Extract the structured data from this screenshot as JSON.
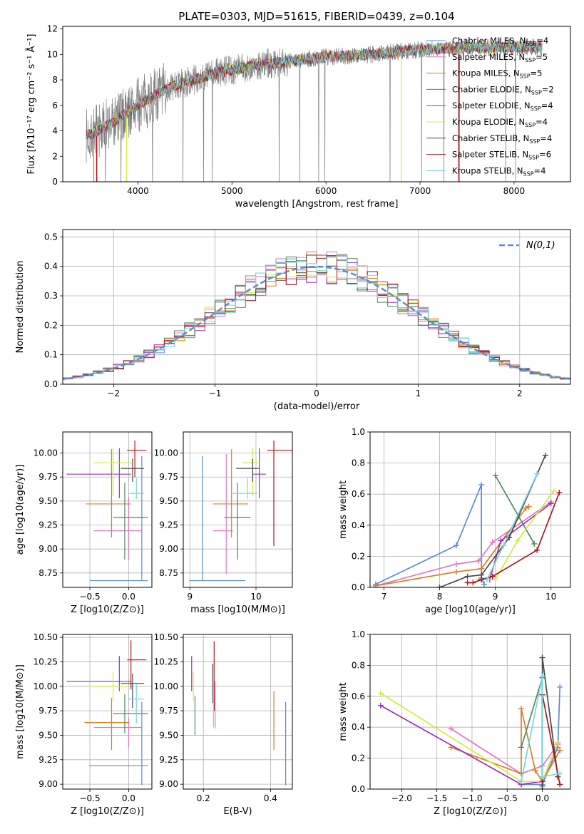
{
  "figure_title": "PLATE=0303, MJD=51615, FIBERID=0439, z=0.104",
  "chart_data": [
    {
      "id": "spectrum",
      "type": "line",
      "title": "PLATE=0303, MJD=51615, FIBERID=0439, z=0.104",
      "xlabel": "wavelength [Angstrom, rest frame]",
      "ylabel": "Flux [fλ10⁻¹⁷ erg cm⁻² s⁻¹ Å⁻¹]",
      "xlim": [
        3200,
        8600
      ],
      "ylim": [
        0,
        12.2
      ],
      "xticks": [
        4000,
        5000,
        6000,
        7000,
        8000
      ],
      "yticks": [
        0,
        2,
        4,
        6,
        8,
        10,
        12
      ],
      "legend": "upper right",
      "grid": false,
      "observed": {
        "color": "#808080",
        "x_range": [
          3450,
          8300
        ],
        "continuum": [
          [
            3450,
            3.6
          ],
          [
            3700,
            4.5
          ],
          [
            4000,
            6.0
          ],
          [
            4300,
            7.3
          ],
          [
            4800,
            8.5
          ],
          [
            5300,
            9.2
          ],
          [
            6000,
            9.8
          ],
          [
            6500,
            10.0
          ],
          [
            7000,
            10.4
          ],
          [
            7500,
            10.5
          ],
          [
            8000,
            10.6
          ],
          [
            8300,
            10.6
          ]
        ]
      },
      "series": [
        {
          "name": "Chabrier MILES, N_SSP=4",
          "color": "#5b8bd5"
        },
        {
          "name": "Salpeter MILES, N_SSP=5",
          "color": "#e377c2"
        },
        {
          "name": "Kroupa MILES, N_SSP=5",
          "color": "#e07b1f"
        },
        {
          "name": "Chabrier ELODIE, N_SSP=2",
          "color": "#4f8a5b"
        },
        {
          "name": "Salpeter ELODIE, N_SSP=4",
          "color": "#9b30b8"
        },
        {
          "name": "Kroupa ELODIE, N_SSP=4",
          "color": "#d4ec3c"
        },
        {
          "name": "Chabrier STELIB, N_SSP=4",
          "color": "#4a4a4a"
        },
        {
          "name": "Salpeter STELIB, N_SSP=6",
          "color": "#b0141b"
        },
        {
          "name": "Kroupa STELIB, N_SSP=4",
          "color": "#74d8e2"
        }
      ]
    },
    {
      "id": "residuals",
      "type": "histogram",
      "xlabel": "(data-model)/error",
      "ylabel": "Normed distribution",
      "xlim": [
        -2.5,
        2.5
      ],
      "ylim": [
        0,
        0.525
      ],
      "xticks": [
        -2,
        -1,
        0,
        1,
        2
      ],
      "yticks": [
        0.0,
        0.1,
        0.2,
        0.3,
        0.4,
        0.5
      ],
      "grid": true,
      "legend": "upper right",
      "reference": {
        "name": "N(0,1)",
        "color": "#5b8bd5",
        "style": "dashed"
      },
      "bin_width": 0.1
    },
    {
      "id": "age_vs_Z",
      "type": "errorbar",
      "xlabel": "Z [log10(Z/Z⊙)]",
      "ylabel": "age [log10(age/yr)]",
      "xlim": [
        -0.85,
        0.3
      ],
      "ylim": [
        8.6,
        10.22
      ],
      "xticks": [
        -0.5,
        0.0
      ],
      "yticks": [
        8.75,
        9.0,
        9.25,
        9.5,
        9.75,
        10.0
      ],
      "grid": true,
      "points": [
        {
          "x": 0.17,
          "xerr": [
            0.67,
            0.08
          ],
          "y": 8.67,
          "yerr": [
            0,
            1.3
          ],
          "color": "#5b8bd5"
        },
        {
          "x": 0.0,
          "xerr": [
            0.45,
            0.17
          ],
          "y": 9.19,
          "yerr": [
            0.3,
            0.35
          ],
          "color": "#e377c2"
        },
        {
          "x": -0.22,
          "xerr": [
            0.33,
            0.25
          ],
          "y": 9.47,
          "yerr": [
            0.35,
            0.57
          ],
          "color": "#e07b1f"
        },
        {
          "x": -0.05,
          "xerr": [
            0.15,
            0.3
          ],
          "y": 9.33,
          "yerr": [
            0.44,
            0.36
          ],
          "color": "#4f8a5b"
        },
        {
          "x": -0.12,
          "xerr": [
            0.68,
            0.15
          ],
          "y": 9.78,
          "yerr": [
            0.25,
            0.27
          ],
          "color": "#9b30b8"
        },
        {
          "x": -0.2,
          "xerr": [
            0.25,
            0.25
          ],
          "y": 9.9,
          "yerr": [
            0.35,
            0.15
          ],
          "color": "#d4ec3c"
        },
        {
          "x": 0.05,
          "xerr": [
            0.15,
            0.15
          ],
          "y": 9.84,
          "yerr": [
            0.14,
            0.1
          ],
          "color": "#4a4a4a"
        },
        {
          "x": 0.08,
          "xerr": [
            0.1,
            0.15
          ],
          "y": 10.03,
          "yerr": [
            0.28,
            0.1
          ],
          "color": "#b0141b"
        },
        {
          "x": 0.1,
          "xerr": [
            0.1,
            0.1
          ],
          "y": 9.58,
          "yerr": [
            0.06,
            0.16
          ],
          "color": "#74d8e2"
        }
      ]
    },
    {
      "id": "age_vs_mass",
      "type": "errorbar",
      "xlabel": "mass [log10(M/M⊙)]",
      "ylabel": "",
      "xlim": [
        8.9,
        10.55
      ],
      "ylim": [
        8.6,
        10.22
      ],
      "xticks": [
        9,
        10
      ],
      "yticks": [
        8.75,
        9.0,
        9.25,
        9.5,
        9.75,
        10.0
      ],
      "grid": true,
      "points": [
        {
          "x": 9.19,
          "xerr": [
            0.2,
            0.65
          ],
          "y": 8.67,
          "yerr": [
            0,
            1.3
          ],
          "color": "#5b8bd5"
        },
        {
          "x": 9.55,
          "xerr": [
            0.2,
            0.1
          ],
          "y": 9.19,
          "yerr": [
            0.45,
            0.8
          ],
          "color": "#e377c2"
        },
        {
          "x": 9.63,
          "xerr": [
            0.28,
            0.25
          ],
          "y": 9.47,
          "yerr": [
            0.35,
            0.57
          ],
          "color": "#e07b1f"
        },
        {
          "x": 9.72,
          "xerr": [
            0.2,
            0.2
          ],
          "y": 9.33,
          "yerr": [
            0.44,
            0.36
          ],
          "color": "#4f8a5b"
        },
        {
          "x": 10.05,
          "xerr": [
            0.1,
            0.1
          ],
          "y": 9.78,
          "yerr": [
            0.25,
            0.27
          ],
          "color": "#9b30b8"
        },
        {
          "x": 9.95,
          "xerr": [
            0.15,
            0.1
          ],
          "y": 9.9,
          "yerr": [
            0.35,
            0.15
          ],
          "color": "#d4ec3c"
        },
        {
          "x": 9.95,
          "xerr": [
            0.25,
            0.1
          ],
          "y": 9.84,
          "yerr": [
            0.14,
            0.1
          ],
          "color": "#4a4a4a"
        },
        {
          "x": 10.27,
          "xerr": [
            0.1,
            0.3
          ],
          "y": 10.03,
          "yerr": [
            1.0,
            0.1
          ],
          "color": "#b0141b"
        },
        {
          "x": 9.87,
          "xerr": [
            0.25,
            0.15
          ],
          "y": 9.58,
          "yerr": [
            0.06,
            0.16
          ],
          "color": "#74d8e2"
        }
      ]
    },
    {
      "id": "mass_weight_vs_age",
      "type": "line",
      "xlabel": "age [log10(age/yr)]",
      "ylabel": "mass weight",
      "xlim": [
        6.75,
        10.35
      ],
      "ylim": [
        0,
        1.0
      ],
      "xticks": [
        7,
        8,
        9,
        10
      ],
      "yticks": [
        0.0,
        0.2,
        0.4,
        0.6,
        0.8,
        1.0
      ],
      "grid": true,
      "series": [
        {
          "color": "#5b8bd5",
          "x": [
            6.85,
            8.3,
            8.75,
            8.75,
            8.8
          ],
          "y": [
            0.02,
            0.27,
            0.66,
            0.06,
            0.02
          ]
        },
        {
          "color": "#e377c2",
          "x": [
            6.85,
            8.3,
            8.7,
            8.95,
            10.0
          ],
          "y": [
            0.01,
            0.15,
            0.17,
            0.29,
            0.55
          ]
        },
        {
          "color": "#e07b1f",
          "x": [
            6.85,
            8.3,
            8.75,
            9.55,
            9.6
          ],
          "y": [
            0.01,
            0.1,
            0.12,
            0.51,
            0.52
          ]
        },
        {
          "color": "#4f8a5b",
          "x": [
            9.0,
            9.7
          ],
          "y": [
            0.72,
            0.28
          ]
        },
        {
          "color": "#9b30b8",
          "x": [
            8.75,
            8.9,
            9.1,
            10.0
          ],
          "y": [
            0.05,
            0.05,
            0.3,
            0.54
          ]
        },
        {
          "color": "#d4ec3c",
          "x": [
            8.7,
            9.0,
            9.4,
            10.05
          ],
          "y": [
            0.05,
            0.05,
            0.3,
            0.62
          ]
        },
        {
          "color": "#4a4a4a",
          "x": [
            8.0,
            8.5,
            8.75,
            9.25,
            9.9
          ],
          "y": [
            0.0,
            0.07,
            0.08,
            0.32,
            0.85
          ]
        },
        {
          "color": "#b0141b",
          "x": [
            8.5,
            8.6,
            8.75,
            8.95,
            9.75,
            10.15
          ],
          "y": [
            0.03,
            0.03,
            0.05,
            0.07,
            0.24,
            0.61
          ]
        },
        {
          "color": "#74d8e2",
          "x": [
            8.85,
            9.15,
            9.75
          ],
          "y": [
            0.05,
            0.27,
            0.73
          ]
        }
      ]
    },
    {
      "id": "mass_vs_Z",
      "type": "errorbar",
      "xlabel": "Z [log10(Z/Z⊙)]",
      "ylabel": "mass [log10(M/M⊙)]",
      "xlim": [
        -0.85,
        0.3
      ],
      "ylim": [
        8.95,
        10.53
      ],
      "xticks": [
        -0.5,
        0.0
      ],
      "yticks": [
        9.0,
        9.25,
        9.5,
        9.75,
        10.0,
        10.25,
        10.5
      ],
      "grid": true,
      "points": [
        {
          "x": 0.17,
          "xerr": [
            0.68,
            0.08
          ],
          "y": 9.19,
          "yerr": [
            0.2,
            0.65
          ],
          "color": "#5b8bd5"
        },
        {
          "x": 0.0,
          "xerr": [
            0.45,
            0.17
          ],
          "y": 9.58,
          "yerr": [
            0.2,
            0.1
          ],
          "color": "#e377c2"
        },
        {
          "x": -0.22,
          "xerr": [
            0.35,
            0.23
          ],
          "y": 9.63,
          "yerr": [
            0.28,
            0.25
          ],
          "color": "#e07b1f"
        },
        {
          "x": -0.05,
          "xerr": [
            0.15,
            0.3
          ],
          "y": 9.72,
          "yerr": [
            0.2,
            0.2
          ],
          "color": "#4f8a5b"
        },
        {
          "x": -0.12,
          "xerr": [
            0.68,
            0.15
          ],
          "y": 10.05,
          "yerr": [
            0.1,
            0.26
          ],
          "color": "#9b30b8"
        },
        {
          "x": -0.2,
          "xerr": [
            0.3,
            0.2
          ],
          "y": 10.0,
          "yerr": [
            0.15,
            0.15
          ],
          "color": "#d4ec3c"
        },
        {
          "x": 0.05,
          "xerr": [
            0.15,
            0.15
          ],
          "y": 10.03,
          "yerr": [
            0.25,
            0.1
          ],
          "color": "#4a4a4a"
        },
        {
          "x": 0.03,
          "xerr": [
            0.05,
            0.2
          ],
          "y": 10.27,
          "yerr": [
            0.3,
            0.2
          ],
          "color": "#b0141b"
        },
        {
          "x": 0.1,
          "xerr": [
            0.1,
            0.1
          ],
          "y": 9.87,
          "yerr": [
            0.25,
            0.15
          ],
          "color": "#74d8e2"
        }
      ]
    },
    {
      "id": "mass_vs_EBV",
      "type": "errorbar",
      "xlabel": "E(B-V)",
      "ylabel": "",
      "xlim": [
        0.14,
        0.465
      ],
      "ylim": [
        8.95,
        10.53
      ],
      "xticks": [
        0.2,
        0.4
      ],
      "yticks": [
        9.0,
        9.25,
        9.5,
        9.75,
        10.0,
        10.25,
        10.5
      ],
      "grid": true,
      "points": [
        {
          "x": 0.445,
          "y": 9.19,
          "yerr": [
            0.2,
            0.65
          ],
          "color": "#5b8bd5"
        },
        {
          "x": 0.41,
          "y": 9.6,
          "yerr": [
            0.25,
            0.35
          ],
          "color": "#e07b1f"
        },
        {
          "x": 0.235,
          "y": 9.85,
          "yerr": [
            0.28,
            0.2
          ],
          "color": "#e377c2"
        },
        {
          "x": 0.175,
          "y": 9.7,
          "yerr": [
            0.2,
            0.2
          ],
          "color": "#4f8a5b"
        },
        {
          "x": 0.165,
          "y": 10.15,
          "yerr": [
            0.2,
            0.16
          ],
          "color": "#9b30b8"
        },
        {
          "x": 0.17,
          "y": 10.0,
          "yerr": [
            0.15,
            0.15
          ],
          "color": "#d4ec3c"
        },
        {
          "x": 0.228,
          "y": 10.03,
          "yerr": [
            0.2,
            0.2
          ],
          "color": "#4a4a4a"
        },
        {
          "x": 0.232,
          "y": 10.2,
          "yerr": [
            0.45,
            0.26
          ],
          "color": "#b0141b"
        },
        {
          "x": 0.23,
          "y": 9.83,
          "yerr": [
            0.25,
            0.1
          ],
          "color": "#74d8e2"
        }
      ]
    },
    {
      "id": "mass_weight_vs_Z",
      "type": "line",
      "xlabel": "Z [log10(Z/Z⊙)]",
      "ylabel": "mass weight",
      "xlim": [
        -2.45,
        0.4
      ],
      "ylim": [
        0,
        1.0
      ],
      "xticks": [
        -2.0,
        -1.5,
        -1.0,
        -0.5,
        0.0
      ],
      "yticks": [
        0.0,
        0.2,
        0.4,
        0.6,
        0.8,
        1.0
      ],
      "grid": true,
      "series": [
        {
          "color": "#5b8bd5",
          "x": [
            -0.3,
            0.0,
            0.22,
            0.25
          ],
          "y": [
            0.03,
            0.03,
            0.27,
            0.66
          ]
        },
        {
          "color": "#e377c2",
          "x": [
            -1.3,
            -0.3,
            0.0,
            0.22
          ],
          "y": [
            0.39,
            0.1,
            0.15,
            0.29
          ]
        },
        {
          "color": "#e07b1f",
          "x": [
            -1.3,
            -0.3,
            -0.3,
            -0.1,
            0.0,
            0.25
          ],
          "y": [
            0.27,
            0.1,
            0.52,
            0.12,
            0.05,
            0.25
          ]
        },
        {
          "color": "#4f8a5b",
          "x": [
            -0.3,
            0.0,
            0.0
          ],
          "y": [
            0.27,
            0.72,
            0.0
          ]
        },
        {
          "color": "#9b30b8",
          "x": [
            -2.3,
            -0.3,
            0.0,
            0.22
          ],
          "y": [
            0.54,
            0.03,
            0.05,
            0.3
          ]
        },
        {
          "color": "#d4ec3c",
          "x": [
            -2.3,
            -0.3,
            0.0,
            0.22
          ],
          "y": [
            0.62,
            0.05,
            0.05,
            0.3
          ]
        },
        {
          "color": "#4a4a4a",
          "x": [
            0.0,
            0.0,
            0.22
          ],
          "y": [
            0.02,
            0.85,
            0.08
          ]
        },
        {
          "color": "#b0141b",
          "x": [
            0.0,
            0.0,
            0.25
          ],
          "y": [
            0.05,
            0.61,
            0.03
          ]
        },
        {
          "color": "#74d8e2",
          "x": [
            -0.3,
            0.0,
            0.0,
            0.25
          ],
          "y": [
            0.05,
            0.73,
            0.08,
            0.1
          ]
        }
      ]
    }
  ]
}
